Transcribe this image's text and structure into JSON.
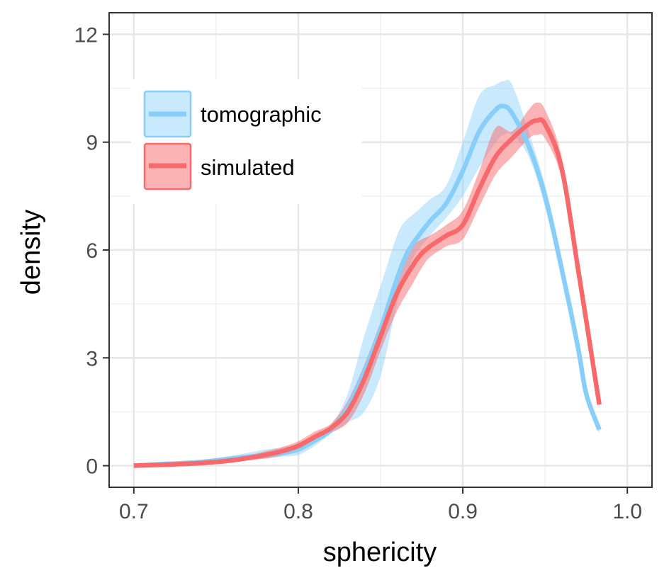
{
  "chart_data": {
    "type": "line",
    "xlabel": "sphericity",
    "ylabel": "density",
    "xlim": [
      0.685,
      1.015
    ],
    "ylim": [
      -0.6,
      12.6
    ],
    "xticks": [
      0.7,
      0.8,
      0.9,
      1.0
    ],
    "xtick_labels": [
      "0.7",
      "0.8",
      "0.9",
      "1.0"
    ],
    "yticks": [
      0,
      3,
      6,
      9,
      12
    ],
    "ytick_labels": [
      "0",
      "3",
      "6",
      "9",
      "12"
    ],
    "grid": true,
    "legend_position": "top-left",
    "series": [
      {
        "name": "tomographic",
        "color": "#87CEFA",
        "band_color": "#87CEFA",
        "x": [
          0.7,
          0.72,
          0.74,
          0.76,
          0.78,
          0.79,
          0.8,
          0.81,
          0.82,
          0.83,
          0.84,
          0.85,
          0.86,
          0.865,
          0.87,
          0.88,
          0.89,
          0.9,
          0.91,
          0.92,
          0.925,
          0.93,
          0.94,
          0.95,
          0.96,
          0.97,
          0.975,
          0.983
        ],
        "y": [
          0.0,
          0.05,
          0.1,
          0.2,
          0.3,
          0.35,
          0.45,
          0.7,
          1.0,
          1.6,
          2.6,
          3.8,
          5.2,
          5.8,
          6.2,
          6.8,
          7.3,
          8.2,
          9.3,
          9.9,
          10.0,
          9.8,
          8.9,
          7.5,
          5.5,
          3.3,
          2.0,
          1.0
        ],
        "lower": [
          0.0,
          0.03,
          0.07,
          0.15,
          0.2,
          0.25,
          0.3,
          0.55,
          0.9,
          1.2,
          1.5,
          2.5,
          4.5,
          5.2,
          5.8,
          6.4,
          6.9,
          7.5,
          8.3,
          9.0,
          9.2,
          9.2,
          8.6,
          7.2,
          5.2,
          3.0,
          1.8,
          0.9
        ],
        "upper": [
          0.0,
          0.08,
          0.15,
          0.28,
          0.45,
          0.5,
          0.62,
          0.85,
          1.15,
          2.0,
          3.6,
          5.0,
          6.4,
          6.8,
          7.0,
          7.4,
          7.8,
          9.0,
          10.3,
          10.6,
          10.7,
          10.6,
          9.3,
          7.8,
          5.8,
          3.5,
          2.2,
          1.1
        ]
      },
      {
        "name": "simulated",
        "color": "#F8696B",
        "band_color": "#F8696B",
        "x": [
          0.7,
          0.72,
          0.74,
          0.76,
          0.78,
          0.79,
          0.8,
          0.81,
          0.82,
          0.83,
          0.84,
          0.85,
          0.86,
          0.87,
          0.875,
          0.88,
          0.89,
          0.9,
          0.91,
          0.92,
          0.93,
          0.94,
          0.945,
          0.95,
          0.96,
          0.97,
          0.983
        ],
        "y": [
          0.0,
          0.03,
          0.07,
          0.15,
          0.3,
          0.4,
          0.55,
          0.8,
          1.05,
          1.5,
          2.4,
          3.6,
          4.8,
          5.6,
          5.9,
          6.1,
          6.4,
          6.7,
          7.7,
          8.6,
          9.1,
          9.5,
          9.6,
          9.5,
          8.3,
          5.5,
          1.7
        ],
        "lower": [
          0.0,
          0.02,
          0.05,
          0.1,
          0.2,
          0.28,
          0.42,
          0.65,
          0.92,
          1.2,
          2.0,
          3.2,
          4.3,
          5.1,
          5.5,
          5.8,
          6.1,
          6.3,
          7.2,
          8.1,
          8.6,
          9.1,
          9.2,
          9.1,
          8.0,
          5.3,
          1.6
        ],
        "upper": [
          0.0,
          0.05,
          0.1,
          0.2,
          0.4,
          0.52,
          0.68,
          0.95,
          1.18,
          1.8,
          2.8,
          4.0,
          5.3,
          6.1,
          6.3,
          6.4,
          6.7,
          7.1,
          8.2,
          9.4,
          9.3,
          9.9,
          10.1,
          9.9,
          8.6,
          5.7,
          1.8
        ]
      }
    ]
  }
}
